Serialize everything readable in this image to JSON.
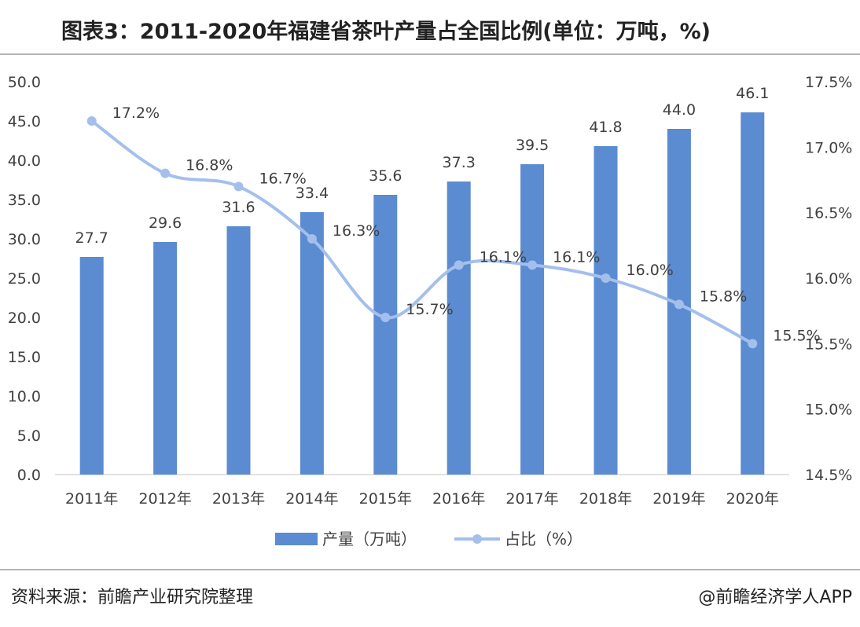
{
  "title": "图表3：2011-2020年福建省茶叶产量占全国比例(单位：万吨，%)",
  "source": "资料来源：前瞻产业研究院整理",
  "credit": "@前瞻经济学人APP",
  "colors": {
    "bar": "#5b8bd0",
    "line": "#a4bfec",
    "text": "#404040",
    "axis": "#d9d9d9"
  },
  "chart_data": {
    "type": "bar",
    "categories": [
      "2011年",
      "2012年",
      "2013年",
      "2014年",
      "2015年",
      "2016年",
      "2017年",
      "2018年",
      "2019年",
      "2020年"
    ],
    "series": [
      {
        "name": "产量（万吨）",
        "type": "bar",
        "axis": "left",
        "values": [
          27.7,
          29.6,
          31.6,
          33.4,
          35.6,
          37.3,
          39.5,
          41.8,
          44.0,
          46.1
        ],
        "labels": [
          "27.7",
          "29.6",
          "31.6",
          "33.4",
          "35.6",
          "37.3",
          "39.5",
          "41.8",
          "44.0",
          "46.1"
        ]
      },
      {
        "name": "占比（%）",
        "type": "line",
        "axis": "right",
        "values": [
          17.2,
          16.8,
          16.7,
          16.3,
          15.7,
          16.1,
          16.1,
          16.0,
          15.8,
          15.5
        ],
        "labels": [
          "17.2%",
          "16.8%",
          "16.7%",
          "16.3%",
          "15.7%",
          "16.1%",
          "16.1%",
          "16.0%",
          "15.8%",
          "15.5%"
        ]
      }
    ],
    "y_left": {
      "min": 0,
      "max": 50,
      "ticks": [
        "0.0",
        "5.0",
        "10.0",
        "15.0",
        "20.0",
        "25.0",
        "30.0",
        "35.0",
        "40.0",
        "45.0",
        "50.0"
      ]
    },
    "y_right": {
      "min": 14.5,
      "max": 17.5,
      "ticks": [
        "14.5%",
        "15.0%",
        "15.5%",
        "16.0%",
        "16.5%",
        "17.0%",
        "17.5%"
      ]
    },
    "legend_position": "bottom",
    "grid": false
  }
}
